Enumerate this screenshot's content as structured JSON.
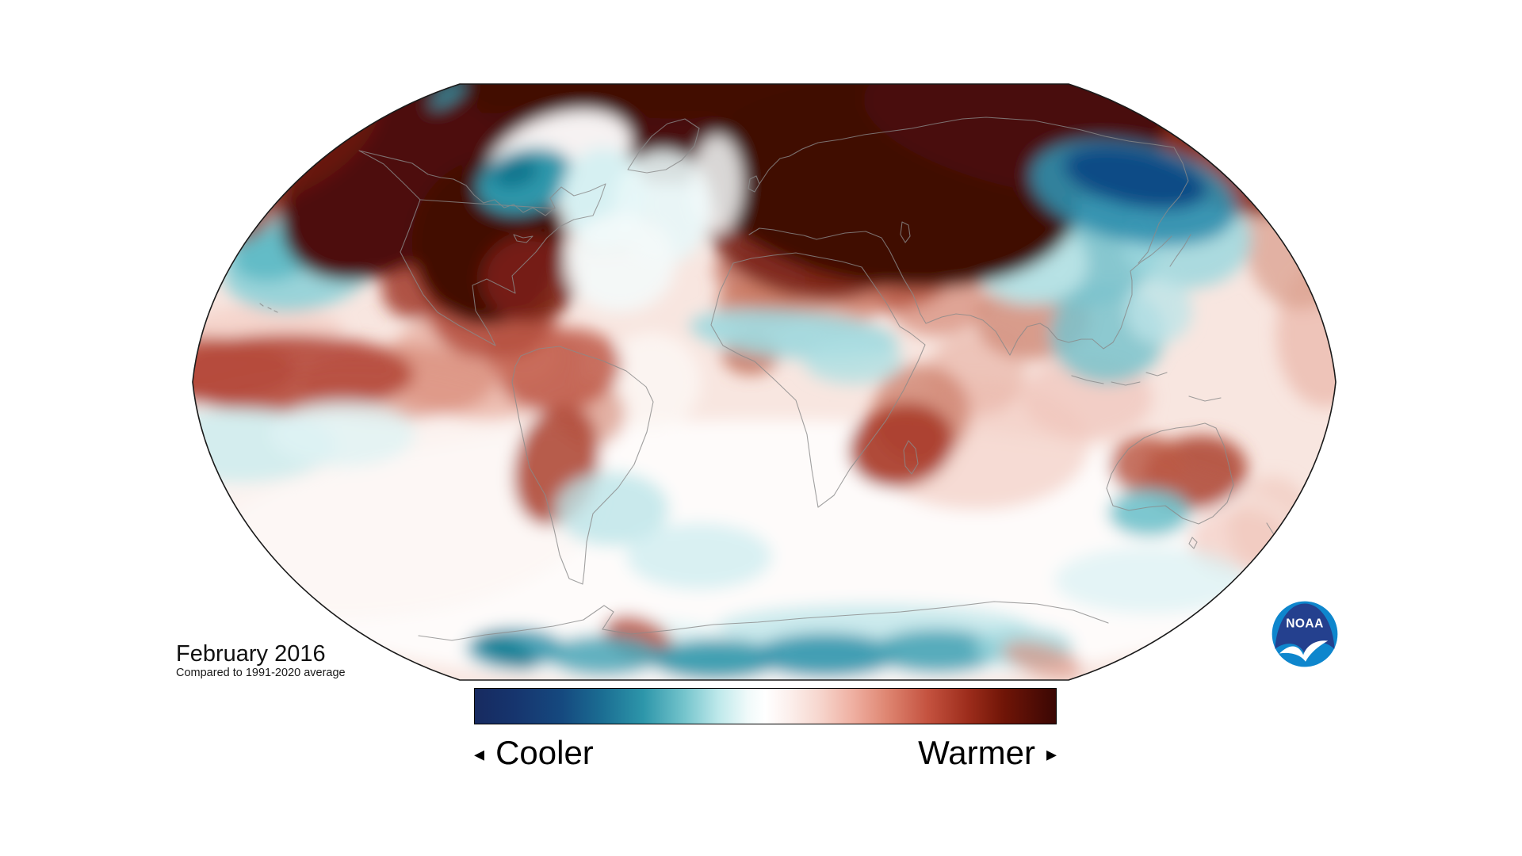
{
  "caption": {
    "date": "February 2016",
    "note": "Compared to 1991-2020 average"
  },
  "legend": {
    "cooler_label": "Cooler",
    "warmer_label": "Warmer",
    "left_arrow": "◂",
    "right_arrow": "▸"
  },
  "colorbar": {
    "border_color": "#000000",
    "stops": [
      [
        "#172a60",
        0
      ],
      [
        "#16356e",
        7
      ],
      [
        "#15497f",
        15
      ],
      [
        "#1b6e93",
        22
      ],
      [
        "#2d96aa",
        29
      ],
      [
        "#74c4cc",
        36
      ],
      [
        "#bfe9eb",
        42
      ],
      [
        "#f0fafa",
        47
      ],
      [
        "#ffffff",
        50
      ],
      [
        "#fcf0ed",
        54
      ],
      [
        "#f7d8d0",
        59
      ],
      [
        "#efb0a2",
        65
      ],
      [
        "#de8571",
        71
      ],
      [
        "#c4523f",
        78
      ],
      [
        "#9c2c1b",
        85
      ],
      [
        "#701507",
        91
      ],
      [
        "#520d05",
        96
      ],
      [
        "#3a0704",
        100
      ]
    ]
  },
  "logo": {
    "text": "NOAA",
    "dark_blue": "#24408e",
    "light_blue": "#0e86cd",
    "bird_color": "#ffffff"
  },
  "map": {
    "projection": "Robinson",
    "outline_color": "#1a1a1a",
    "coastline_color": "#8a8a8a",
    "base_color": "#f8e6e0",
    "anomaly_format": [
      "name",
      "x",
      "y",
      "rx",
      "ry",
      "rotate",
      "color",
      "opacity"
    ],
    "anomalies": [
      [
        "southern-ocean-white",
        960,
        700,
        700,
        170,
        0,
        "#ffffff",
        0.85
      ],
      [
        "sw-pacific-white",
        432,
        622,
        330,
        160,
        0,
        "#fdf6f4",
        0.8
      ],
      [
        "brazil-east-white",
        822,
        482,
        62,
        62,
        0,
        "#fdf7f5",
        0.8
      ],
      [
        "us-pink",
        612,
        458,
        122,
        72,
        0,
        "#e8b0a3",
        0.8
      ],
      [
        "indian-ocean-pink",
        1232,
        562,
        142,
        82,
        0,
        "#f2cdc3",
        0.7
      ],
      [
        "hawaii-pink",
        332,
        417,
        102,
        32,
        0,
        "#f3c9c0",
        0.6
      ],
      [
        "indonesia-pink",
        1372,
        502,
        82,
        52,
        0,
        "#f0c5ba",
        0.7
      ],
      [
        "tasman-pink",
        1562,
        682,
        62,
        42,
        0,
        "#f0c2b6",
        0.6
      ],
      [
        "nz-pink",
        1600,
        660,
        50,
        60,
        20,
        "#eec2b6",
        0.55
      ],
      [
        "e-africa-pink",
        1232,
        472,
        62,
        52,
        0,
        "#e8b5a8",
        0.7
      ],
      [
        "right-edge-pink",
        1672,
        422,
        62,
        92,
        0,
        "#eab5a8",
        0.7
      ],
      [
        "nw-pacific-pink",
        1640,
        300,
        70,
        90,
        0,
        "#dba08f",
        0.75
      ],
      [
        "arabia-pink",
        1182,
        382,
        62,
        42,
        0,
        "#d99382",
        0.8
      ],
      [
        "brazil-pink",
        747,
        522,
        42,
        42,
        0,
        "#d99786",
        0.7
      ],
      [
        "elnino-east-fade",
        502,
        482,
        122,
        47,
        0,
        "#d98a78",
        0.7
      ],
      [
        "mediterranean-red",
        982,
        352,
        82,
        42,
        10,
        "#c3705e",
        0.8
      ],
      [
        "middle-east-red",
        1107,
        347,
        92,
        46,
        0,
        "#b85843",
        0.85
      ],
      [
        "india-red",
        1302,
        402,
        72,
        52,
        0,
        "#d08a76",
        0.8
      ],
      [
        "sahara-red-w",
        965,
        382,
        62,
        30,
        0,
        "#cc7a64",
        0.8
      ],
      [
        "sahara-red-e",
        1057,
        387,
        52,
        26,
        0,
        "#d8917e",
        0.7
      ],
      [
        "guinea-red",
        947,
        447,
        36,
        26,
        0,
        "#c06a54",
        0.8
      ],
      [
        "amazon-red",
        707,
        467,
        77,
        52,
        -10,
        "#bf5b49",
        0.85
      ],
      [
        "colombia-red",
        657,
        447,
        47,
        37,
        0,
        "#ca6e5c",
        0.8
      ],
      [
        "argentina-red",
        702,
        587,
        52,
        77,
        15,
        "#b04a38",
        0.9
      ],
      [
        "zambia-red",
        1162,
        522,
        62,
        62,
        0,
        "#cf8571",
        0.8
      ],
      [
        "s-africa-core",
        1137,
        562,
        67,
        52,
        -15,
        "#a83a28",
        0.9
      ],
      [
        "elnino-west",
        252,
        467,
        122,
        42,
        0,
        "#c05a48",
        0.85
      ],
      [
        "elnino-core",
        362,
        472,
        160,
        50,
        0,
        "#b5493a",
        0.9
      ],
      [
        "us-north-red",
        622,
        392,
        82,
        62,
        0,
        "#b44c3c",
        0.85
      ],
      [
        "mexico-red",
        540,
        352,
        62,
        46,
        -30,
        "#a23828",
        0.85
      ],
      [
        "ne-coast-red",
        760,
        280,
        60,
        40,
        0,
        "#a84a36",
        0.7
      ],
      [
        "aus-east-red",
        1507,
        597,
        67,
        47,
        -10,
        "#b04a38",
        0.9
      ],
      [
        "aus-center-red",
        1447,
        587,
        47,
        37,
        0,
        "#bc5a46",
        0.85
      ],
      [
        "sahel-teal",
        1002,
        422,
        132,
        30,
        5,
        "#9ed8de",
        0.9
      ],
      [
        "horn-teal",
        1077,
        457,
        62,
        27,
        0,
        "#aee0e4",
        0.8
      ],
      [
        "s-pacific-teal",
        302,
        562,
        122,
        47,
        0,
        "#c9ebee",
        0.8
      ],
      [
        "s-pacific-teal2",
        432,
        547,
        92,
        42,
        0,
        "#dff3f4",
        0.8
      ],
      [
        "se-sa-teal",
        772,
        642,
        72,
        47,
        0,
        "#bce5e9",
        0.8
      ],
      [
        "s-atlantic-cyan",
        882,
        702,
        92,
        42,
        0,
        "#cfeef0",
        0.8
      ],
      [
        "sw-aus-teal",
        1450,
        647,
        52,
        30,
        0,
        "#6fc2cb",
        0.9
      ],
      [
        "s-indian-teal",
        1452,
        732,
        122,
        42,
        0,
        "#d8f1f3",
        0.7
      ],
      [
        "se-coast-cyan",
        640,
        310,
        30,
        40,
        0,
        "#ddf2f3",
        0.7
      ],
      [
        "mongolia-teal",
        1332,
        302,
        130,
        82,
        10,
        "#7ac3cd",
        0.9
      ],
      [
        "mongolia-light",
        1300,
        332,
        72,
        52,
        0,
        "#bde5e8",
        0.9
      ],
      [
        "japan-sea-teal",
        1497,
        302,
        82,
        62,
        0,
        "#9ed8de",
        0.85
      ],
      [
        "se-china-teal",
        1397,
        422,
        72,
        62,
        0,
        "#7ac3cd",
        0.85
      ],
      [
        "s-japan-cyan",
        1462,
        392,
        42,
        42,
        0,
        "#bde5e8",
        0.8
      ],
      [
        "gulf-alaska-teal",
        378,
        330,
        100,
        62,
        -10,
        "#8fd1d8",
        0.9
      ],
      [
        "gulf-alaska-core",
        345,
        322,
        52,
        32,
        -10,
        "#5bb8c4",
        0.85
      ],
      [
        "ant-coast-light",
        1102,
        792,
        200,
        30,
        0,
        "#bfe6ea",
        0.8
      ],
      [
        "ant-white",
        842,
        802,
        62,
        20,
        0,
        "#e0f4f5",
        0.8
      ],
      [
        "arctic-band",
        960,
        148,
        590,
        85,
        0,
        "#4a0b07",
        1
      ],
      [
        "arctic-band-top",
        960,
        105,
        620,
        45,
        0,
        "#420a06",
        1
      ],
      [
        "alaska-yukon",
        490,
        235,
        150,
        100,
        -35,
        "#4e0e08",
        1
      ],
      [
        "central-canada",
        615,
        305,
        95,
        105,
        8,
        "#420b06",
        1
      ],
      [
        "quebec",
        668,
        352,
        60,
        55,
        0,
        "#7a2114",
        0.9
      ],
      [
        "left-arctic-streak",
        370,
        180,
        120,
        60,
        -30,
        "#6b1a10",
        0.9
      ],
      [
        "left-edge-red",
        285,
        255,
        80,
        55,
        -20,
        "#8c3020",
        0.75
      ],
      [
        "e-europe-red",
        1012,
        302,
        122,
        72,
        15,
        "#7a2114",
        0.9
      ],
      [
        "nw-russia-core",
        1120,
        235,
        240,
        125,
        8,
        "#3f0a06",
        1
      ],
      [
        "siberia-north",
        1300,
        165,
        215,
        75,
        12,
        "#4a0b07",
        1
      ],
      [
        "kamchatka-red",
        1555,
        205,
        95,
        60,
        25,
        "#8c2d1c",
        0.9
      ],
      [
        "ne-corner-red",
        1612,
        168,
        80,
        40,
        20,
        "#a03a26",
        0.8
      ],
      [
        "greenland-white",
        705,
        200,
        95,
        55,
        -20,
        "#ffffff",
        0.95
      ],
      [
        "baffin-teal",
        663,
        228,
        62,
        40,
        -15,
        "#2e97ab",
        1
      ],
      [
        "baffin-core",
        650,
        218,
        30,
        18,
        -15,
        "#11768e",
        1
      ],
      [
        "greenland-south-cyan",
        762,
        252,
        55,
        65,
        0,
        "#d6f0f2",
        1
      ],
      [
        "n-atlantic-cyan",
        836,
        262,
        62,
        72,
        0,
        "#e8f7f8",
        0.9
      ],
      [
        "norwegian-white",
        905,
        232,
        32,
        62,
        0,
        "#f5fbfb",
        0.85
      ],
      [
        "labrador-white",
        782,
        332,
        70,
        62,
        0,
        "#f4fafa",
        0.9
      ],
      [
        "top-left-streak",
        565,
        120,
        26,
        9,
        -35,
        "#2e97ab",
        0.9
      ],
      [
        "amur-teal",
        1430,
        243,
        132,
        62,
        12,
        "#2e8fae",
        0.9
      ],
      [
        "amur-navy",
        1432,
        224,
        92,
        36,
        12,
        "#0f4c86",
        1
      ],
      [
        "peninsula-red",
        805,
        805,
        45,
        26,
        20,
        "#c05a48",
        0.9
      ],
      [
        "ant-teal-1",
        650,
        818,
        62,
        26,
        0,
        "#3a9ab0",
        0.9
      ],
      [
        "ant-teal-1b",
        640,
        822,
        40,
        18,
        25,
        "#1a7f96",
        0.9
      ],
      [
        "ant-teal-2",
        762,
        827,
        72,
        26,
        0,
        "#47a4b6",
        0.85
      ],
      [
        "ant-teal-3",
        902,
        832,
        82,
        26,
        0,
        "#2e97ab",
        0.9
      ],
      [
        "ant-teal-4",
        1042,
        827,
        92,
        28,
        0,
        "#3a9ab0",
        0.95
      ],
      [
        "ant-teal-5",
        1182,
        822,
        82,
        28,
        0,
        "#47a4b6",
        0.9
      ],
      [
        "ant-teal-6",
        1292,
        817,
        62,
        26,
        0,
        "#9ed8de",
        0.8
      ],
      [
        "ant-red-right",
        1315,
        832,
        52,
        20,
        15,
        "#d98a78",
        0.65
      ]
    ]
  }
}
